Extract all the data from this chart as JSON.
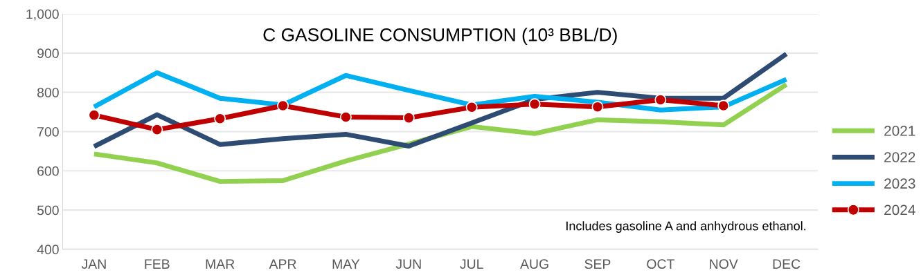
{
  "chart_data": {
    "type": "line",
    "title": "C GASOLINE CONSUMPTION (10³ BBL/D)",
    "categories": [
      "JAN",
      "FEB",
      "MAR",
      "APR",
      "MAY",
      "JUN",
      "JUL",
      "AUG",
      "SEP",
      "OCT",
      "NOV",
      "DEC"
    ],
    "series": [
      {
        "name": "2021",
        "color": "#92d050",
        "marker": "none",
        "values": [
          643,
          620,
          573,
          575,
          625,
          668,
          713,
          695,
          730,
          725,
          717,
          820
        ]
      },
      {
        "name": "2022",
        "color": "#2e4b73",
        "marker": "none",
        "values": [
          662,
          743,
          667,
          682,
          693,
          663,
          722,
          782,
          800,
          785,
          785,
          898
        ]
      },
      {
        "name": "2023",
        "color": "#00b0f0",
        "marker": "none",
        "values": [
          763,
          850,
          785,
          768,
          843,
          805,
          768,
          790,
          775,
          755,
          763,
          833
        ]
      },
      {
        "name": "2024",
        "color": "#c00000",
        "marker": "circle",
        "values": [
          742,
          705,
          733,
          766,
          737,
          735,
          762,
          770,
          763,
          781,
          766,
          null
        ]
      }
    ],
    "ylim": [
      400,
      1000
    ],
    "yticks": [
      400,
      500,
      600,
      700,
      800,
      900,
      {
        "value": 1000,
        "label": "1,000"
      }
    ],
    "grid": "y",
    "legend": "right",
    "line_style": "solid",
    "annotations": [
      "Includes gasoline A and anhydrous ethanol."
    ]
  }
}
